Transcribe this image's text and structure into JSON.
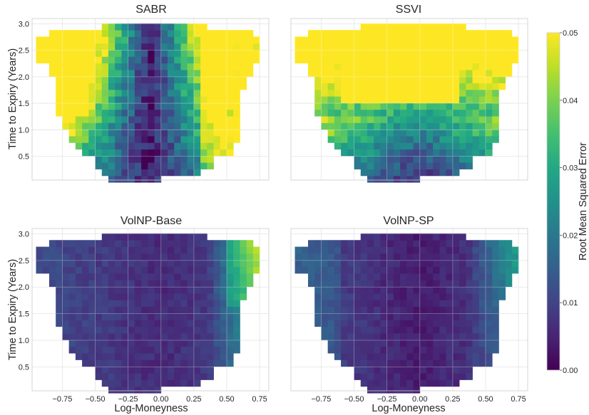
{
  "chart_data": {
    "type": "heatmap",
    "panels": [
      {
        "title": "SABR",
        "model": "sabr"
      },
      {
        "title": "SSVI",
        "model": "ssvi"
      },
      {
        "title": "VolNP-Base",
        "model": "base"
      },
      {
        "title": "VolNP-SP",
        "model": "sp"
      }
    ],
    "xlabel": "Log-Moneyness",
    "ylabel": "Time to Expiry (Years)",
    "xlim": [
      -0.98,
      0.82
    ],
    "ylim": [
      0.05,
      3.1
    ],
    "xticks": [
      -0.75,
      -0.5,
      -0.25,
      0.0,
      0.25,
      0.5,
      0.75
    ],
    "xtick_labels": [
      "−0.75",
      "−0.50",
      "−0.25",
      "0.00",
      "0.25",
      "0.50",
      "0.75"
    ],
    "yticks": [
      0.5,
      1.0,
      1.5,
      2.0,
      2.5,
      3.0
    ],
    "ytick_labels": [
      "0.5",
      "1.0",
      "1.5",
      "2.0",
      "2.5",
      "3.0"
    ],
    "grid": true,
    "colorbar": {
      "label": "Root Mean Squared Error",
      "colormap": "viridis",
      "min": 0.0,
      "max": 0.05,
      "ticks": [
        0.0,
        0.01,
        0.02,
        0.03,
        0.04,
        0.05
      ],
      "tick_labels": [
        "0.00",
        "0.01",
        "0.02",
        "0.03",
        "0.04",
        "0.05"
      ]
    },
    "grid_cells": {
      "x_start": -0.975,
      "x_step": 0.05,
      "y_start": 0.07,
      "y_step": 0.125,
      "count_x": 35,
      "count_y": 24
    },
    "note": "Each panel is a heatmap of RMSE over log-moneyness and time to expiry; cells outside the supported region are blank."
  }
}
